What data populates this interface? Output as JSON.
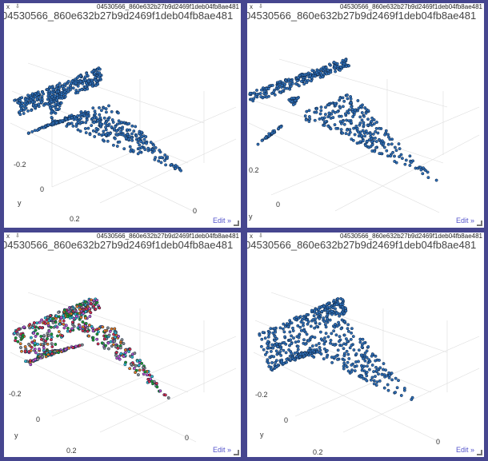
{
  "panels": [
    {
      "close_label": "x",
      "pin_label": "⇩",
      "filename_small": "04530566_860e632b27b9d2469f1deb04fb8ae481",
      "filename_big": "04530566_860e632b27b9d2469f1deb04fb8ae481",
      "edit_label": "Edit »",
      "axis_label": "y",
      "ticks": [
        "-0.2",
        "0",
        "0.2",
        "0"
      ]
    },
    {
      "close_label": "x",
      "pin_label": "⇩",
      "filename_small": "04530566_860e632b27b9d2469f1deb04fb8ae481",
      "filename_big": "04530566_860e632b27b9d2469f1deb04fb8ae481",
      "edit_label": "Edit »",
      "axis_label": "y",
      "ticks": [
        "0.2",
        "0"
      ]
    },
    {
      "close_label": "x",
      "pin_label": "⇩",
      "filename_small": "04530566_860e632b27b9d2469f1deb04fb8ae481",
      "filename_big": "04530566_860e632b27b9d2469f1deb04fb8ae481",
      "edit_label": "Edit »",
      "axis_label": "y",
      "ticks": [
        "-0.2",
        "0",
        "0.2",
        "0"
      ]
    },
    {
      "close_label": "x",
      "pin_label": "⇩",
      "filename_small": "04530566_860e632b27b9d2469f1deb04fb8ae481",
      "filename_big": "04530566_860e632b27b9d2469f1deb04fb8ae481",
      "edit_label": "Edit »",
      "axis_label": "y",
      "ticks": [
        "-0.2",
        "0",
        "0.2",
        "0"
      ]
    }
  ],
  "colors": {
    "background": "#46468f",
    "points": "#2e6db4",
    "points_dark": "#0d2442",
    "segment_colors": [
      "#d42a4a",
      "#1e9b2e",
      "#b84fc8",
      "#e07a20",
      "#2fb8c8",
      "#888888"
    ]
  }
}
